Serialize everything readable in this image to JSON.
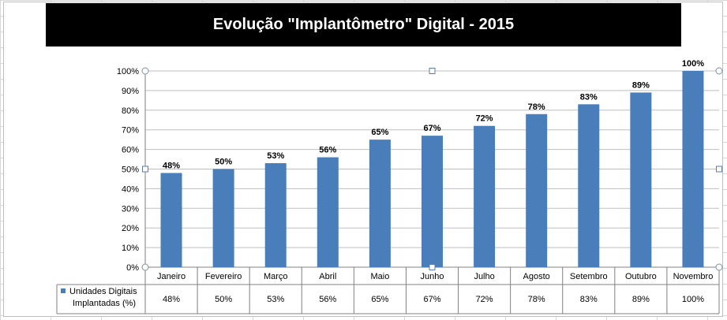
{
  "chart_data": {
    "type": "bar",
    "title": "Evolução \"Implantômetro\" Digital - 2015",
    "categories": [
      "Janeiro",
      "Fevereiro",
      "Março",
      "Abril",
      "Maio",
      "Junho",
      "Julho",
      "Agosto",
      "Setembro",
      "Outubro",
      "Novembro"
    ],
    "series": [
      {
        "name": "Unidades Digitais Implantadas (%)",
        "color": "#4a7ebb",
        "values": [
          48,
          50,
          53,
          56,
          65,
          67,
          72,
          78,
          83,
          89,
          100
        ],
        "labels": [
          "48%",
          "50%",
          "53%",
          "56%",
          "65%",
          "67%",
          "72%",
          "78%",
          "83%",
          "89%",
          "100%"
        ]
      }
    ],
    "ylim": [
      0,
      100
    ],
    "yticks": [
      "0%",
      "10%",
      "20%",
      "30%",
      "40%",
      "50%",
      "60%",
      "70%",
      "80%",
      "90%",
      "100%"
    ],
    "grid": true,
    "data_table": true,
    "legend_line1": "Unidades Digitais",
    "legend_line2": "Implantadas (%)"
  }
}
